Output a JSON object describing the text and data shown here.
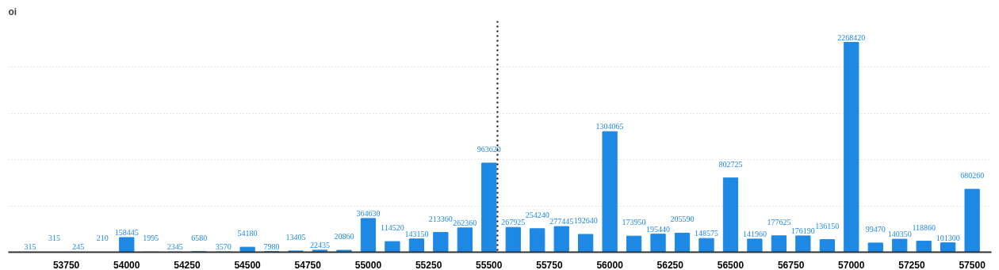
{
  "chart_data": {
    "type": "bar",
    "ylabel": "oi",
    "x": [
      53600,
      53700,
      53800,
      53900,
      54000,
      54100,
      54200,
      54300,
      54400,
      54500,
      54600,
      54700,
      54800,
      54900,
      55000,
      55100,
      55200,
      55300,
      55400,
      55500,
      55600,
      55700,
      55800,
      55900,
      56000,
      56100,
      56200,
      56300,
      56400,
      56500,
      56600,
      56700,
      56800,
      56900,
      57000,
      57100,
      57200,
      57300,
      57400,
      57500
    ],
    "values": [
      315,
      315,
      245,
      210,
      158445,
      1995,
      2345,
      6580,
      3570,
      54180,
      7980,
      13405,
      22435,
      20860,
      364630,
      114520,
      143150,
      213360,
      262360,
      963620,
      267925,
      254240,
      277445,
      192640,
      1304065,
      173950,
      195440,
      205590,
      148575,
      802725,
      141960,
      177625,
      176190,
      136150,
      2268420,
      99470,
      140350,
      118860,
      101300,
      680260
    ],
    "color": "#1e88e5",
    "data_labels": true,
    "xlim": [
      53510,
      57580
    ],
    "xticks": [
      53750,
      54000,
      54250,
      54500,
      54750,
      55000,
      55250,
      55500,
      55750,
      56000,
      56250,
      56500,
      56750,
      57000,
      57250,
      57500
    ],
    "ylim": [
      0,
      2500000
    ],
    "yticks": [
      {
        "value": 0,
        "label": null
      },
      {
        "value": 500000,
        "label": null
      },
      {
        "value": 1000000,
        "label": null
      },
      {
        "value": 1500000,
        "label": null
      },
      {
        "value": 2000000,
        "label": null
      }
    ],
    "tick_labels": "x",
    "grid": "y",
    "ref_lines": [
      {
        "axis": "x",
        "value": 55535,
        "label": null,
        "color": "#000000",
        "line_style": "dotted"
      }
    ]
  }
}
